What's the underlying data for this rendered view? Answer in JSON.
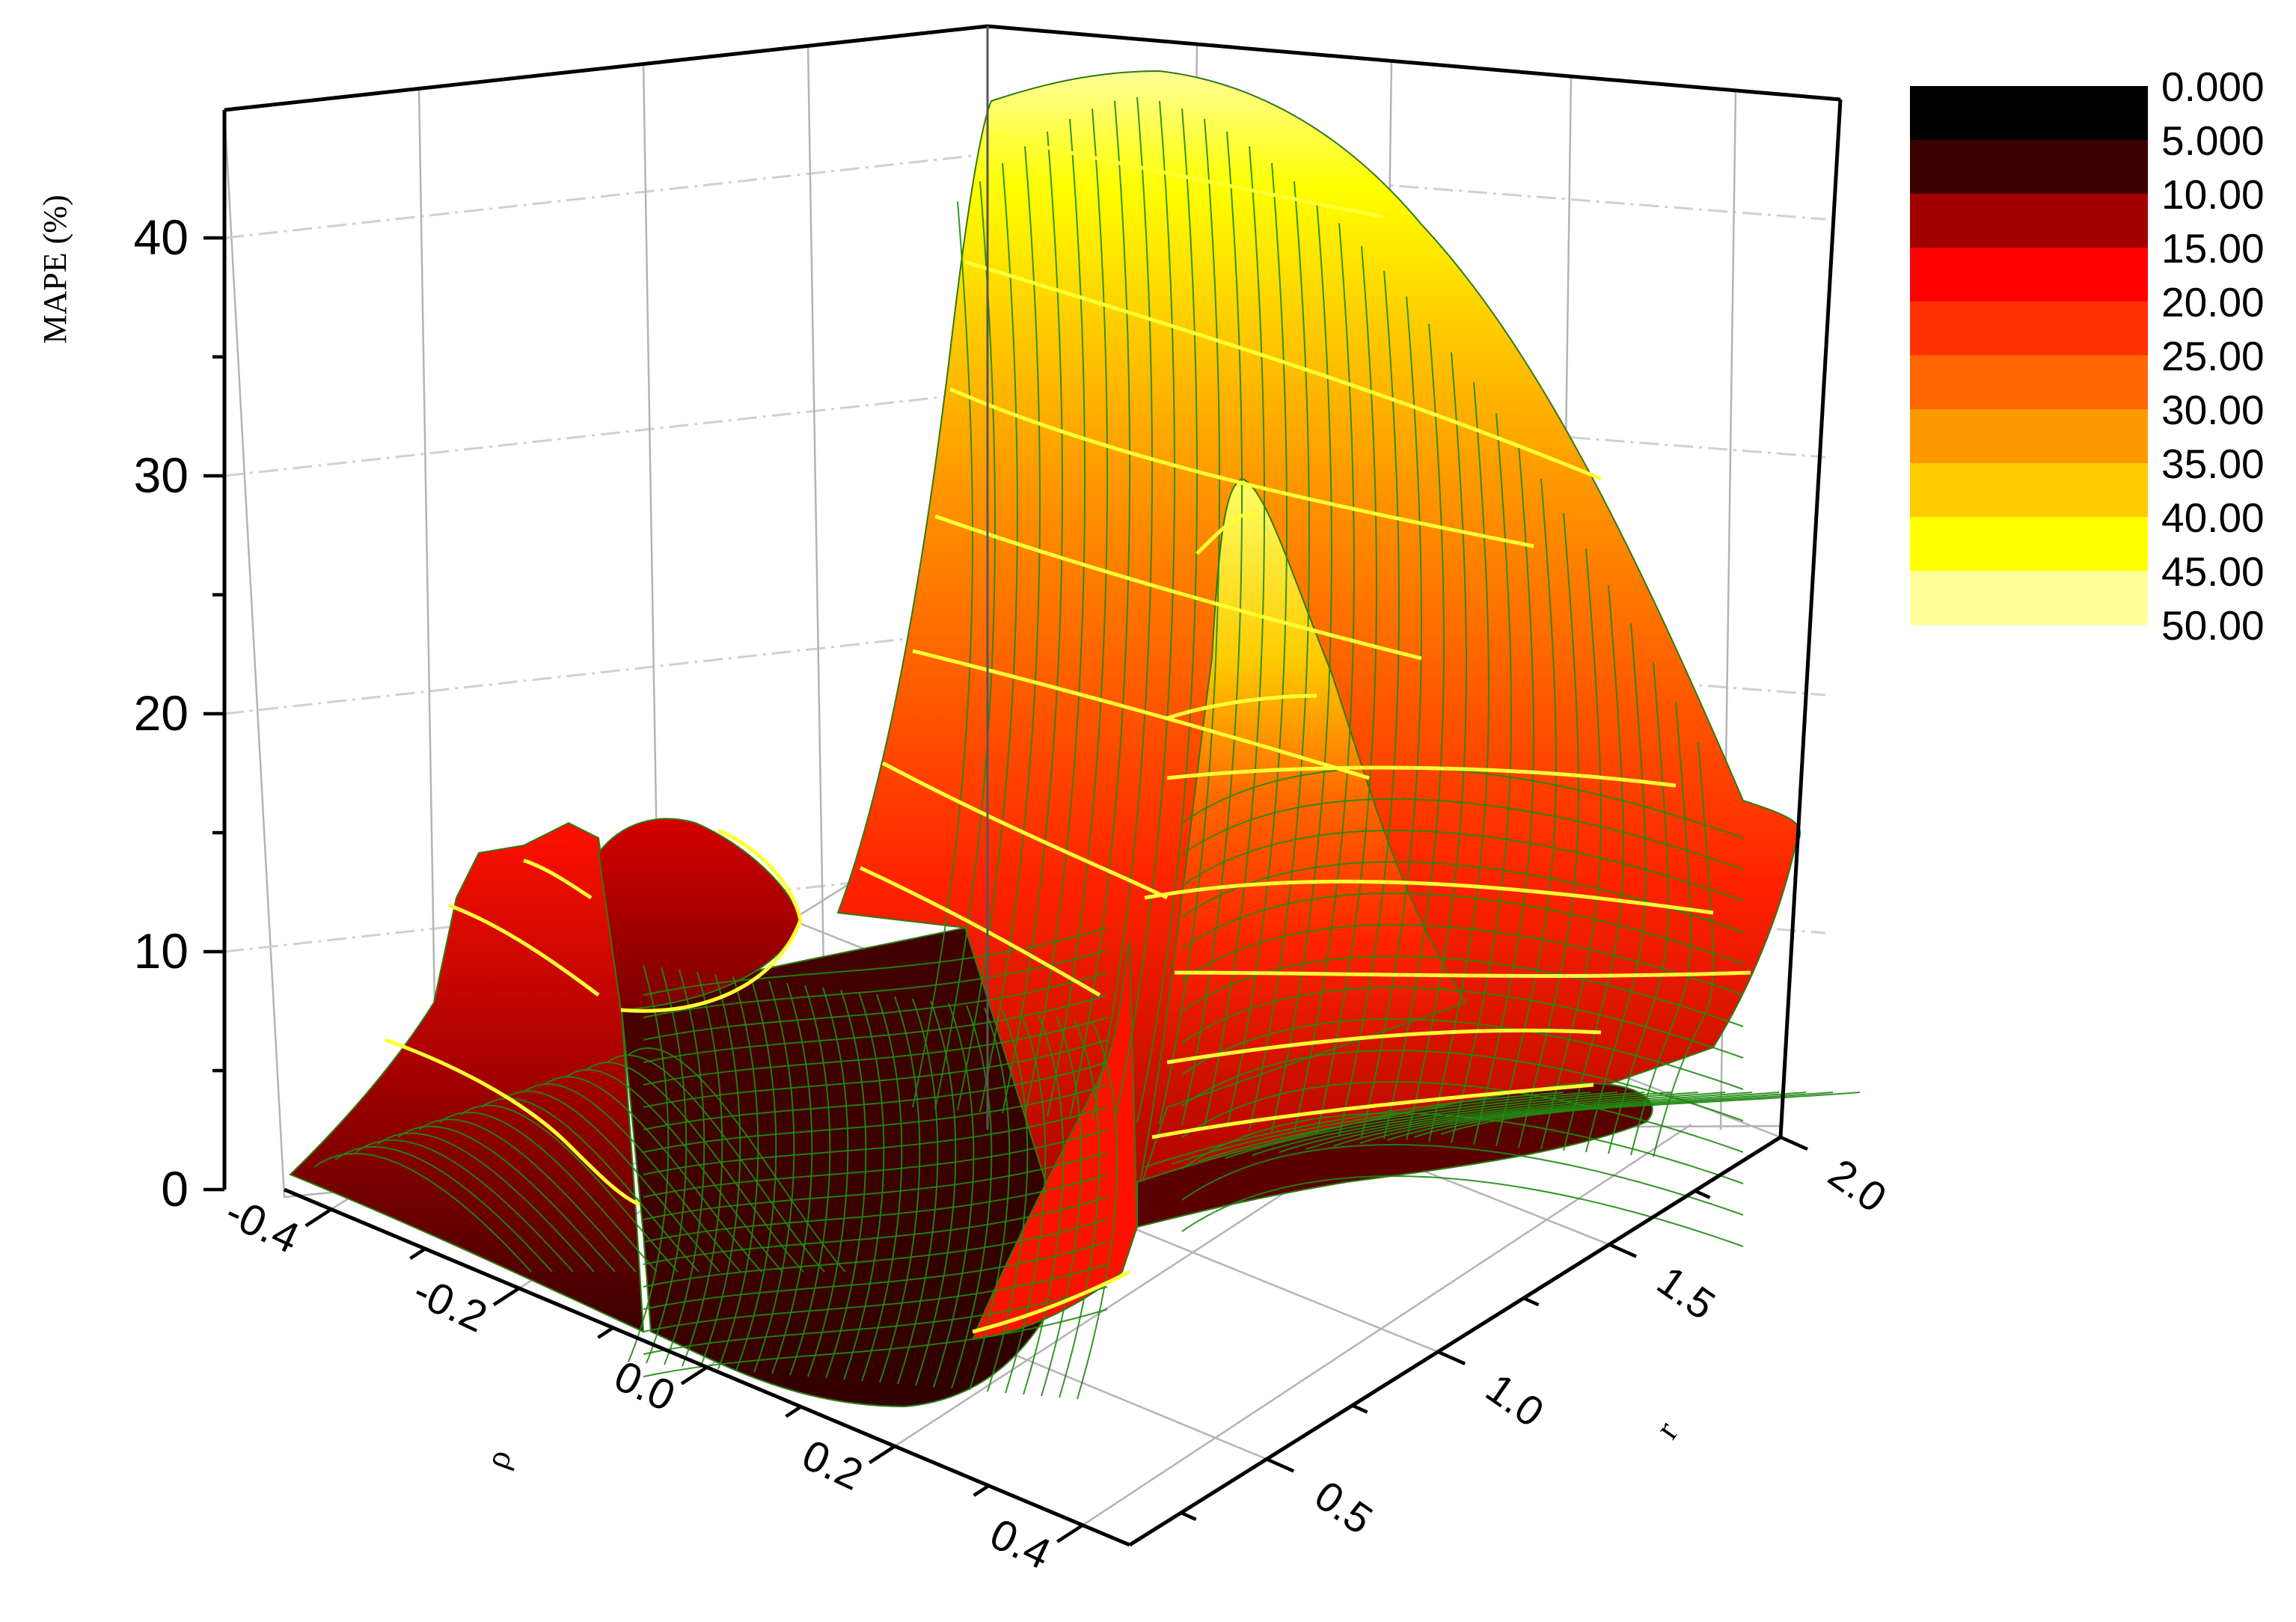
{
  "chart_data": {
    "type": "surface3d",
    "title": "",
    "zlabel": "MAPE (%)",
    "xlabel": "ρ",
    "ylabel": "r",
    "x_axis": {
      "ticks": [
        "-0.4",
        "-0.2",
        "0.0",
        "0.2",
        "0.4"
      ],
      "range": [
        -0.45,
        0.45
      ]
    },
    "y_axis": {
      "ticks": [
        "0.5",
        "1.0",
        "1.5",
        "2.0"
      ],
      "range": [
        0.1,
        2.0
      ]
    },
    "z_axis": {
      "ticks": [
        "0",
        "10",
        "20",
        "30",
        "40"
      ],
      "range": [
        0,
        45
      ]
    },
    "grid": true,
    "colormap": {
      "labels": [
        "0.000",
        "5.000",
        "10.00",
        "15.00",
        "20.00",
        "25.00",
        "30.00",
        "35.00",
        "40.00",
        "45.00",
        "50.00"
      ],
      "levels": [
        0,
        5,
        10,
        15,
        20,
        25,
        30,
        35,
        40,
        45,
        50
      ],
      "colors": [
        "#000000",
        "#3a0000",
        "#a30000",
        "#ff0000",
        "#ff3300",
        "#ff6600",
        "#ff9900",
        "#ffcc00",
        "#ffff00",
        "#ffff99"
      ],
      "legend_position": "top-right"
    },
    "mesh_color": "#1f8a12",
    "contour_line_color": "#ffff33",
    "surface_features": [
      {
        "feature": "ridge along rho = 0.45 (back edge), peak at r = 0.1",
        "rho": 0.45,
        "r": 0.1,
        "mape": 42
      },
      {
        "feature": "ridge along rho = 0.45, far corner",
        "rho": 0.45,
        "r": 2.0,
        "mape": 15
      },
      {
        "feature": "narrow spike",
        "rho": 0.2,
        "r": 0.9,
        "mape": 30
      },
      {
        "feature": "hump near front-left",
        "rho": -0.15,
        "r": 0.1,
        "mape": 16
      },
      {
        "feature": "jagged peaks near rho = -0.2",
        "rho": -0.2,
        "r": 0.25,
        "mape": 17
      },
      {
        "feature": "valley floor",
        "rho": 0.0,
        "r": 1.0,
        "mape": 2
      }
    ]
  }
}
